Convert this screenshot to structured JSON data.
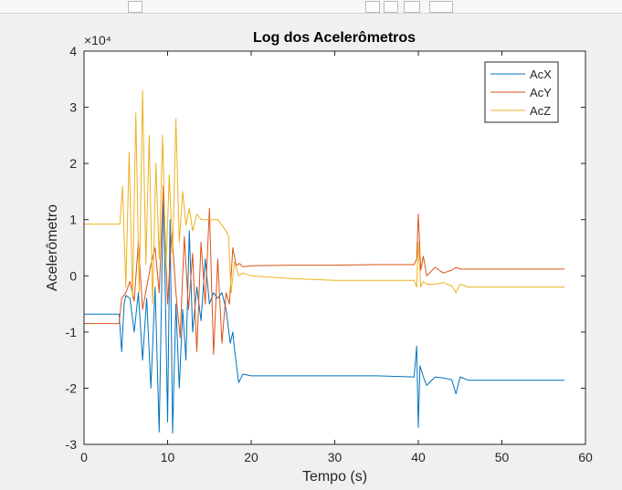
{
  "chart_data": {
    "type": "line",
    "title": "Log dos Acelerômetros",
    "xlabel": "Tempo (s)",
    "ylabel": "Acelerômetro",
    "xlim": [
      0,
      60
    ],
    "ylim": [
      -3,
      4
    ],
    "y_scale_label": "×10⁴",
    "xticks": [
      "0",
      "10",
      "20",
      "30",
      "40",
      "50",
      "60"
    ],
    "yticks": [
      "-3",
      "-2",
      "-1",
      "0",
      "1",
      "2",
      "3",
      "4"
    ],
    "legend_position": "top-right",
    "grid": false,
    "series": [
      {
        "name": "AcX",
        "color": "#0072BD",
        "x": [
          0,
          1,
          2,
          3,
          4.2,
          4.5,
          4.8,
          5,
          5.5,
          6,
          6.5,
          7,
          7.5,
          8,
          8.5,
          9,
          9.5,
          10,
          10.3,
          10.6,
          11,
          11.4,
          11.8,
          12.2,
          12.6,
          13,
          13.5,
          14,
          14.5,
          15,
          15.5,
          16,
          16.5,
          17,
          17.5,
          17.8,
          18,
          18.5,
          19,
          20,
          25,
          30,
          35,
          39.5,
          39.8,
          40,
          40.2,
          40.6,
          41,
          42,
          43,
          44,
          44.5,
          45,
          46,
          50,
          55,
          57.5
        ],
        "y": [
          -0.68,
          -0.68,
          -0.68,
          -0.68,
          -0.68,
          -1.35,
          -0.5,
          -0.35,
          -0.4,
          -1.0,
          -0.3,
          -1.5,
          -0.4,
          -2.0,
          -0.2,
          -2.78,
          1.6,
          -2.6,
          1.0,
          -2.8,
          -0.5,
          -2.0,
          -0.6,
          -1.5,
          0.8,
          -1.0,
          -0.2,
          -0.8,
          0.3,
          -0.5,
          -0.3,
          -0.4,
          -0.3,
          -0.6,
          -1.2,
          -1.0,
          -1.3,
          -1.9,
          -1.75,
          -1.78,
          -1.78,
          -1.78,
          -1.78,
          -1.8,
          -1.25,
          -2.7,
          -1.6,
          -1.8,
          -1.95,
          -1.8,
          -1.82,
          -1.85,
          -2.1,
          -1.8,
          -1.86,
          -1.86,
          -1.86,
          -1.86
        ]
      },
      {
        "name": "AcY",
        "color": "#D95319",
        "x": [
          0,
          1,
          2,
          3,
          4.2,
          4.5,
          5,
          5.5,
          6,
          6.5,
          7,
          7.5,
          8,
          8.5,
          9,
          9.5,
          10,
          10.5,
          11,
          11.5,
          12,
          12.5,
          13,
          13.5,
          14,
          14.5,
          15,
          15.5,
          16,
          16.5,
          17,
          17.4,
          17.8,
          18.2,
          18.6,
          19,
          20,
          25,
          30,
          35,
          39.5,
          39.8,
          40,
          40.3,
          40.6,
          41,
          42,
          43,
          44,
          44.5,
          45,
          50,
          55,
          57.5
        ],
        "y": [
          -0.85,
          -0.85,
          -0.85,
          -0.85,
          -0.85,
          -0.4,
          -0.3,
          -0.1,
          -0.45,
          0.6,
          -0.6,
          -0.2,
          0.2,
          0.5,
          -0.3,
          1.6,
          -0.5,
          0.8,
          -0.3,
          -1.1,
          0.7,
          -0.6,
          0.4,
          -1.35,
          0.6,
          -0.5,
          1.2,
          -1.4,
          0.3,
          -1.2,
          -0.3,
          -0.5,
          0.5,
          0.18,
          0.22,
          0.16,
          0.18,
          0.19,
          0.19,
          0.2,
          0.2,
          0.3,
          1.1,
          0.1,
          0.35,
          0.0,
          0.15,
          0.05,
          0.1,
          0.15,
          0.12,
          0.12,
          0.12,
          0.12
        ]
      },
      {
        "name": "AcZ",
        "color": "#EDB120",
        "x": [
          0,
          1,
          2,
          3,
          4,
          4.3,
          4.6,
          5,
          5.4,
          5.8,
          6.2,
          6.6,
          7,
          7.4,
          7.8,
          8.2,
          8.6,
          9,
          9.4,
          9.8,
          10.2,
          10.6,
          11,
          11.4,
          11.8,
          12.2,
          12.6,
          13,
          13.5,
          14,
          14.5,
          15,
          15.5,
          16,
          16.5,
          17,
          17.3,
          17.6,
          18,
          18.5,
          19,
          20,
          25,
          30,
          35,
          39.5,
          39.8,
          40,
          40.3,
          40.6,
          41,
          42,
          43,
          44,
          44.5,
          45,
          46,
          50,
          55,
          57.5
        ],
        "y": [
          0.92,
          0.92,
          0.92,
          0.92,
          0.92,
          0.92,
          1.6,
          -0.2,
          2.2,
          -0.4,
          2.9,
          -0.3,
          3.3,
          0.2,
          2.5,
          -0.5,
          2.0,
          0.3,
          2.5,
          0.1,
          1.8,
          0.4,
          2.8,
          0.6,
          1.5,
          0.9,
          1.2,
          0.8,
          1.1,
          1.0,
          1.0,
          1.0,
          1.0,
          1.0,
          0.9,
          0.8,
          0.7,
          -0.3,
          0.25,
          0.0,
          0.05,
          0.0,
          -0.05,
          -0.08,
          -0.08,
          -0.08,
          -0.2,
          0.6,
          -0.2,
          -0.1,
          -0.15,
          -0.15,
          -0.12,
          -0.18,
          -0.3,
          -0.15,
          -0.2,
          -0.2,
          -0.2,
          -0.2
        ]
      }
    ]
  }
}
